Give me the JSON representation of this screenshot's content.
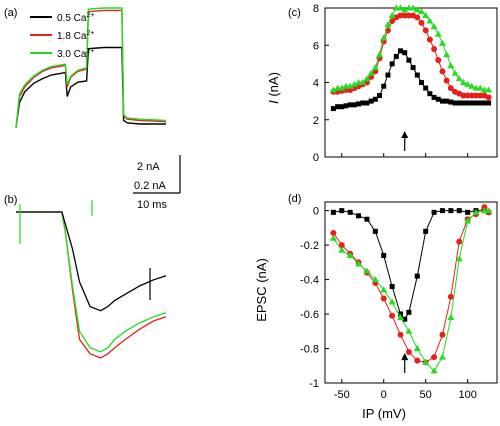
{
  "colors": {
    "black": "#000000",
    "red": "#e8201c",
    "green": "#22dd22"
  },
  "legend": [
    {
      "label": "0.5 Ca",
      "sup": "2+",
      "color": "#000000"
    },
    {
      "label": "1.8 Ca",
      "sup": "2+",
      "color": "#e8201c"
    },
    {
      "label": "3.0 Ca",
      "sup": "2+",
      "color": "#22dd22"
    }
  ],
  "scalebar": {
    "current_a": "2 nA",
    "current_b": "0.2 nA",
    "time": "10 ms"
  },
  "chart_data": [
    {
      "panel": "(a)",
      "type": "line",
      "title": "",
      "xlabel": "",
      "ylabel": "",
      "description_note": "",
      "series": [
        {
          "name": "0.5 Ca2+",
          "color": "#000000",
          "t": [
            0,
            2,
            5,
            10,
            15,
            20,
            28,
            29,
            31,
            35,
            40,
            41,
            50,
            60,
            61,
            63,
            70,
            85
          ],
          "i": [
            0.2,
            2.3,
            3.2,
            3.9,
            4.3,
            4.6,
            4.8,
            2.8,
            3.6,
            4.0,
            4.1,
            6.8,
            6.9,
            6.9,
            0.8,
            0.6,
            0.5,
            0.5
          ]
        },
        {
          "name": "1.8 Ca2+",
          "color": "#e8201c",
          "t": [
            0,
            2,
            5,
            10,
            15,
            20,
            28,
            29,
            31,
            35,
            40,
            41,
            50,
            60,
            61,
            63,
            70,
            85
          ],
          "i": [
            0.2,
            2.8,
            3.6,
            4.4,
            4.9,
            5.2,
            5.4,
            3.6,
            4.4,
            4.9,
            5.1,
            9.9,
            10.0,
            10.0,
            1.2,
            0.9,
            0.8,
            0.7
          ]
        },
        {
          "name": "3.0 Ca2+",
          "color": "#22dd22",
          "t": [
            0,
            2,
            5,
            10,
            15,
            20,
            28,
            29,
            31,
            35,
            40,
            41,
            50,
            60,
            61,
            63,
            70,
            85
          ],
          "i": [
            0.2,
            3.0,
            3.8,
            4.5,
            5.0,
            5.3,
            5.5,
            3.8,
            4.5,
            5.0,
            5.2,
            10.1,
            10.2,
            10.2,
            1.3,
            1.0,
            0.9,
            0.8
          ]
        }
      ]
    },
    {
      "panel": "(b)",
      "type": "line",
      "title": "",
      "xlabel": "",
      "ylabel": "",
      "series": [
        {
          "name": "0.5 Ca2+",
          "color": "#000000",
          "t": [
            0,
            10,
            20,
            26,
            28,
            32,
            36,
            42,
            48,
            52,
            56,
            62,
            70,
            78,
            85
          ],
          "v": [
            0,
            0,
            0,
            0,
            -0.06,
            -0.18,
            -0.34,
            -0.46,
            -0.48,
            -0.46,
            -0.43,
            -0.4,
            -0.36,
            -0.33,
            -0.31
          ]
        },
        {
          "name": "1.8 Ca2+",
          "color": "#e8201c",
          "t": [
            0,
            10,
            20,
            26,
            28,
            32,
            36,
            42,
            48,
            52,
            56,
            62,
            70,
            78,
            85
          ],
          "v": [
            0,
            0,
            0,
            0,
            -0.1,
            -0.38,
            -0.62,
            -0.69,
            -0.71,
            -0.69,
            -0.66,
            -0.62,
            -0.57,
            -0.53,
            -0.51
          ]
        },
        {
          "name": "3.0 Ca2+",
          "color": "#22dd22",
          "t": [
            0,
            10,
            20,
            26,
            28,
            32,
            36,
            42,
            48,
            52,
            56,
            62,
            70,
            78,
            85
          ],
          "v": [
            0,
            0,
            0,
            0,
            -0.1,
            -0.36,
            -0.58,
            -0.66,
            -0.68,
            -0.66,
            -0.62,
            -0.58,
            -0.54,
            -0.51,
            -0.49
          ]
        }
      ]
    },
    {
      "panel": "(c)",
      "type": "line",
      "xlabel": "",
      "ylabel": "I (nA)",
      "ylabel_italic": "I",
      "ylabel_rest": " (nA)",
      "ylim": [
        0,
        8
      ],
      "yticks": [
        0,
        2,
        4,
        6,
        8
      ],
      "xlim": [
        -70,
        135
      ],
      "arrow_x": 25,
      "series": [
        {
          "name": "0.5 Ca2+",
          "color": "#000000",
          "marker": "square",
          "x": [
            -60,
            -55,
            -50,
            -45,
            -40,
            -35,
            -30,
            -25,
            -20,
            -15,
            -10,
            -5,
            0,
            5,
            10,
            15,
            20,
            25,
            30,
            35,
            40,
            45,
            50,
            55,
            60,
            65,
            70,
            75,
            80,
            85,
            90,
            95,
            100,
            105,
            110,
            115,
            120,
            125
          ],
          "y": [
            2.6,
            2.7,
            2.7,
            2.75,
            2.8,
            2.8,
            2.85,
            2.9,
            2.9,
            3.0,
            3.1,
            3.3,
            3.8,
            4.4,
            5.0,
            5.4,
            5.7,
            5.6,
            5.2,
            4.8,
            4.4,
            4.0,
            3.7,
            3.4,
            3.2,
            3.1,
            3.0,
            3.0,
            2.95,
            2.9,
            2.9,
            2.9,
            2.9,
            2.9,
            2.9,
            2.9,
            2.9,
            2.9
          ]
        },
        {
          "name": "1.8 Ca2+",
          "color": "#e8201c",
          "marker": "circle",
          "x": [
            -60,
            -55,
            -50,
            -45,
            -40,
            -35,
            -30,
            -25,
            -20,
            -15,
            -10,
            -5,
            0,
            5,
            10,
            15,
            20,
            25,
            30,
            35,
            40,
            45,
            50,
            55,
            60,
            65,
            70,
            75,
            80,
            85,
            90,
            95,
            100,
            105,
            110,
            115,
            120,
            125
          ],
          "y": [
            3.5,
            3.5,
            3.55,
            3.6,
            3.6,
            3.7,
            3.8,
            3.9,
            4.0,
            4.3,
            4.6,
            5.3,
            6.2,
            6.8,
            7.3,
            7.5,
            7.6,
            7.6,
            7.6,
            7.6,
            7.5,
            7.2,
            6.8,
            6.3,
            5.8,
            5.2,
            4.6,
            4.1,
            3.7,
            3.5,
            3.4,
            3.3,
            3.3,
            3.3,
            3.3,
            3.3,
            3.3,
            3.2
          ]
        },
        {
          "name": "3.0 Ca2+",
          "color": "#22dd22",
          "marker": "triangle",
          "x": [
            -60,
            -55,
            -50,
            -45,
            -40,
            -35,
            -30,
            -25,
            -20,
            -15,
            -10,
            -5,
            0,
            5,
            10,
            15,
            20,
            25,
            30,
            35,
            40,
            45,
            50,
            55,
            60,
            65,
            70,
            75,
            80,
            85,
            90,
            95,
            100,
            105,
            110,
            115,
            120,
            125
          ],
          "y": [
            3.6,
            3.7,
            3.7,
            3.8,
            3.8,
            3.9,
            4.0,
            4.0,
            4.2,
            4.5,
            4.8,
            5.5,
            6.4,
            7.1,
            7.6,
            8.0,
            8.0,
            7.9,
            8.0,
            8.0,
            7.9,
            7.8,
            7.6,
            7.3,
            7.0,
            6.6,
            6.1,
            5.5,
            4.9,
            4.5,
            4.2,
            4.0,
            3.9,
            3.8,
            3.7,
            3.7,
            3.6,
            3.6
          ]
        }
      ]
    },
    {
      "panel": "(d)",
      "type": "line",
      "xlabel": "IP (mV)",
      "ylabel": "EPSC (nA)",
      "ylim": [
        -1.0,
        0.05
      ],
      "yticks": [
        0,
        -0.2,
        -0.4,
        -0.6,
        -0.8,
        -1
      ],
      "ytick_labels": [
        "0",
        "-0.2",
        "-0.4",
        "-0.6",
        "-0.8",
        "-1"
      ],
      "xlim": [
        -70,
        135
      ],
      "xticks": [
        -50,
        0,
        50,
        100
      ],
      "xtick_labels": [
        "-50",
        "0",
        "50",
        "100"
      ],
      "arrow_x": 25,
      "series": [
        {
          "name": "0.5 Ca2+",
          "color": "#000000",
          "marker": "square",
          "x": [
            -60,
            -50,
            -40,
            -30,
            -20,
            -10,
            0,
            10,
            20,
            25,
            30,
            40,
            50,
            60,
            70,
            80,
            90,
            100,
            110,
            120,
            125
          ],
          "y": [
            -0.01,
            0.0,
            -0.01,
            -0.03,
            -0.05,
            -0.12,
            -0.26,
            -0.44,
            -0.6,
            -0.63,
            -0.59,
            -0.38,
            -0.12,
            -0.01,
            0.0,
            0.0,
            0.0,
            -0.01,
            0.0,
            0.0,
            -0.01
          ]
        },
        {
          "name": "1.8 Ca2+",
          "color": "#e8201c",
          "marker": "circle",
          "x": [
            -60,
            -50,
            -40,
            -30,
            -20,
            -10,
            0,
            10,
            20,
            30,
            40,
            50,
            60,
            70,
            80,
            90,
            100,
            110,
            120,
            125
          ],
          "y": [
            -0.13,
            -0.2,
            -0.25,
            -0.3,
            -0.36,
            -0.42,
            -0.51,
            -0.61,
            -0.72,
            -0.82,
            -0.87,
            -0.88,
            -0.85,
            -0.72,
            -0.5,
            -0.18,
            -0.05,
            -0.02,
            0.02,
            -0.01
          ]
        },
        {
          "name": "3.0 Ca2+",
          "color": "#22dd22",
          "marker": "triangle",
          "x": [
            -60,
            -50,
            -40,
            -30,
            -20,
            -10,
            0,
            10,
            20,
            30,
            40,
            50,
            60,
            70,
            80,
            90,
            100,
            110,
            120,
            125
          ],
          "y": [
            -0.16,
            -0.23,
            -0.26,
            -0.31,
            -0.35,
            -0.4,
            -0.46,
            -0.53,
            -0.62,
            -0.7,
            -0.8,
            -0.88,
            -0.93,
            -0.85,
            -0.62,
            -0.28,
            -0.06,
            -0.01,
            0.0,
            0.0
          ]
        }
      ]
    }
  ]
}
